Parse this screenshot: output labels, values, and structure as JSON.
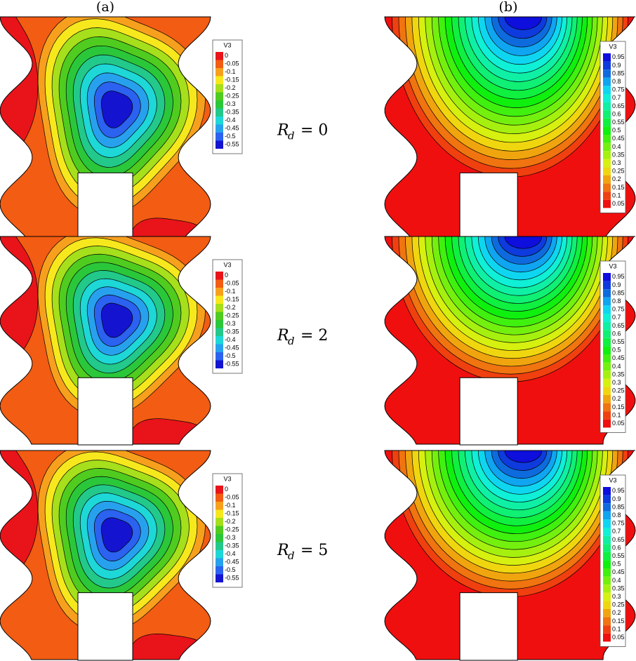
{
  "columns": [
    {
      "label": "(a)",
      "legends": [
        {
          "title": "V3",
          "levels": [
            "0",
            "-0.05",
            "-0.1",
            "-0.15",
            "-0.2",
            "-0.25",
            "-0.3",
            "-0.35",
            "-0.4",
            "-0.45",
            "-0.5",
            "-0.55"
          ]
        },
        {
          "title": "V3",
          "levels": [
            "0",
            "-0.05",
            "-0.1",
            "-0.15",
            "-0.2",
            "-0.25",
            "-0.3",
            "-0.35",
            "-0.4",
            "-0.45",
            "-0.5",
            "-0.55"
          ]
        },
        {
          "title": "V3",
          "levels": [
            "0",
            "-0.05",
            "-0.1",
            "-0.15",
            "-0.2",
            "-0.25",
            "-0.3",
            "-0.35",
            "-0.4",
            "-0.45",
            "-0.5",
            "-0.55"
          ]
        }
      ]
    },
    {
      "label": "(b)",
      "legends": [
        {
          "title": "V3",
          "levels": [
            "0.95",
            "0.9",
            "0.85",
            "0.8",
            "0.75",
            "0.7",
            "0.65",
            "0.6",
            "0.55",
            "0.5",
            "0.45",
            "0.4",
            "0.35",
            "0.3",
            "0.25",
            "0.2",
            "0.15",
            "0.1",
            "0.05"
          ]
        },
        {
          "title": "V3",
          "levels": [
            "0.95",
            "0.9",
            "0.85",
            "0.8",
            "0.75",
            "0.7",
            "0.65",
            "0.6",
            "0.55",
            "0.5",
            "0.45",
            "0.4",
            "0.35",
            "0.3",
            "0.25",
            "0.2",
            "0.15",
            "0.1",
            "0.05"
          ]
        },
        {
          "title": "V3",
          "levels": [
            "0.95",
            "0.9",
            "0.85",
            "0.8",
            "0.75",
            "0.7",
            "0.65",
            "0.6",
            "0.55",
            "0.5",
            "0.45",
            "0.4",
            "0.35",
            "0.3",
            "0.25",
            "0.2",
            "0.15",
            "0.1",
            "0.05"
          ]
        }
      ]
    }
  ],
  "rows": [
    {
      "variable": "R",
      "subscript": "d",
      "relation": "= 0"
    },
    {
      "variable": "R",
      "subscript": "d",
      "relation": "= 2"
    },
    {
      "variable": "R",
      "subscript": "d",
      "relation": "= 5"
    }
  ]
}
